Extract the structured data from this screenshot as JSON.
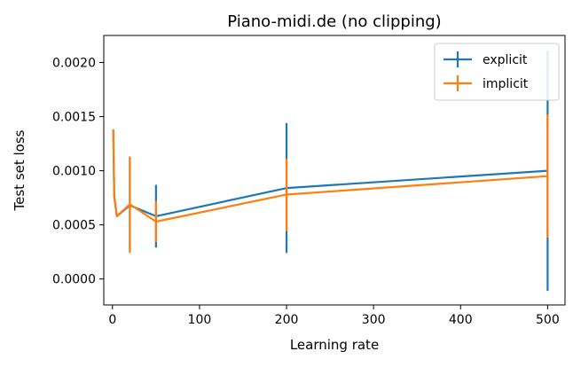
{
  "chart_data": {
    "type": "line",
    "title": "Piano-midi.de (no clipping)",
    "xlabel": "Learning rate",
    "ylabel": "Test set loss",
    "xlim": [
      -10,
      520
    ],
    "ylim": [
      -0.00024,
      0.00225
    ],
    "x_ticks": [
      0,
      100,
      200,
      300,
      400,
      500
    ],
    "x_tick_labels": [
      "0",
      "100",
      "200",
      "300",
      "400",
      "500"
    ],
    "y_ticks": [
      0.0,
      0.0005,
      0.001,
      0.0015,
      0.002
    ],
    "y_tick_labels": [
      "0.0000",
      "0.0005",
      "0.0010",
      "0.0015",
      "0.0020"
    ],
    "grid": false,
    "legend_position": "top-right",
    "colors": {
      "explicit": "#1f77b4",
      "implicit": "#ff7f0e"
    },
    "series": [
      {
        "name": "explicit",
        "x": [
          1,
          2,
          5,
          20,
          50,
          200,
          500
        ],
        "y": [
          0.00137,
          0.00077,
          0.00058,
          0.00068,
          0.00058,
          0.00084,
          0.001
        ],
        "yerr_low": [
          0.00136,
          0.00077,
          0.00058,
          0.00026,
          0.00029,
          0.00024,
          -0.00011
        ],
        "yerr_high": [
          0.00138,
          0.00077,
          0.00058,
          0.00113,
          0.00087,
          0.00144,
          0.00211
        ]
      },
      {
        "name": "implicit",
        "x": [
          1,
          2,
          5,
          20,
          50,
          200,
          500
        ],
        "y": [
          0.00137,
          0.00076,
          0.00058,
          0.00069,
          0.00053,
          0.00078,
          0.00095
        ],
        "yerr_low": [
          0.00136,
          0.00076,
          0.00058,
          0.00024,
          0.00034,
          0.00044,
          0.00038
        ],
        "yerr_high": [
          0.00138,
          0.00076,
          0.00058,
          0.00113,
          0.00072,
          0.00111,
          0.00152
        ]
      }
    ]
  }
}
